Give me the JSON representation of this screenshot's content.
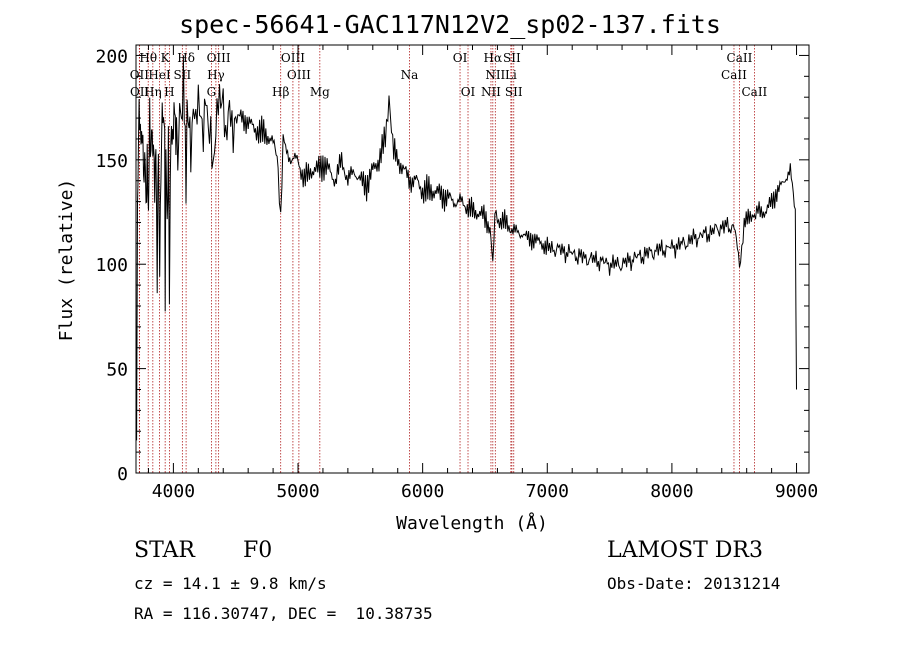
{
  "title": "spec-56641-GAC117N12V2_sp02-137.fits",
  "info": {
    "object_class": "STAR",
    "subclass": "F0",
    "survey": "LAMOST DR3",
    "redshift": "cz = 14.1 ± 9.8 km/s",
    "obs_date": "Obs-Date: 20131214",
    "coords": "RA = 116.30747, DEC =  10.38735"
  },
  "chart_data": {
    "type": "line",
    "title": "spec-56641-GAC117N12V2_sp02-137.fits",
    "xlabel": "Wavelength (Å)",
    "ylabel": "Flux (relative)",
    "xlim": [
      3700,
      9100
    ],
    "ylim": [
      0,
      205
    ],
    "x_ticks": [
      4000,
      5000,
      6000,
      7000,
      8000,
      9000
    ],
    "y_ticks": [
      0,
      50,
      100,
      150,
      200
    ],
    "line_color": "#000000",
    "marker_color": "#b22222",
    "series": [
      {
        "x": [
          3700,
          3705,
          3712,
          3720,
          3730,
          3740,
          3750,
          3760,
          3770,
          3780,
          3790,
          3800,
          3810,
          3820,
          3830,
          3840,
          3850,
          3860,
          3870,
          3880,
          3890,
          3900,
          3910,
          3920,
          3930,
          3934,
          3940,
          3950,
          3960,
          3968,
          3975,
          3985,
          3995,
          4005,
          4015,
          4025,
          4035,
          4050,
          4065,
          4080,
          4095,
          4101,
          4110,
          4125,
          4140,
          4160,
          4180,
          4200,
          4220,
          4240,
          4260,
          4280,
          4300,
          4320,
          4340,
          4360,
          4380,
          4400,
          4420,
          4450,
          4480,
          4500,
          4550,
          4600,
          4650,
          4700,
          4750,
          4800,
          4840,
          4861,
          4880,
          4900,
          4950,
          5000,
          5050,
          5100,
          5150,
          5200,
          5250,
          5300,
          5350,
          5400,
          5450,
          5500,
          5550,
          5600,
          5650,
          5700,
          5730,
          5760,
          5800,
          5850,
          5900,
          5950,
          6000,
          6050,
          6100,
          6150,
          6200,
          6250,
          6300,
          6350,
          6400,
          6450,
          6500,
          6540,
          6563,
          6580,
          6600,
          6650,
          6700,
          6750,
          6800,
          6850,
          6900,
          6950,
          7000,
          7100,
          7200,
          7300,
          7400,
          7500,
          7600,
          7700,
          7800,
          7900,
          8000,
          8100,
          8200,
          8300,
          8400,
          8500,
          8542,
          8580,
          8620,
          8662,
          8700,
          8750,
          8800,
          8850,
          8900,
          8950,
          8990,
          9000
        ],
        "y": [
          70,
          10,
          130,
          160,
          172,
          150,
          165,
          140,
          155,
          135,
          150,
          130,
          168,
          150,
          160,
          150,
          140,
          155,
          100,
          160,
          95,
          145,
          165,
          170,
          155,
          80,
          150,
          125,
          160,
          95,
          140,
          170,
          150,
          175,
          160,
          165,
          150,
          180,
          170,
          185,
          160,
          130,
          175,
          170,
          160,
          180,
          165,
          175,
          170,
          160,
          180,
          165,
          170,
          150,
          160,
          170,
          175,
          185,
          165,
          175,
          160,
          170,
          170,
          168,
          165,
          163,
          162,
          158,
          150,
          120,
          158,
          155,
          150,
          150,
          140,
          145,
          145,
          148,
          145,
          140,
          150,
          140,
          145,
          140,
          138,
          145,
          150,
          160,
          180,
          155,
          150,
          145,
          140,
          140,
          135,
          135,
          135,
          133,
          132,
          130,
          130,
          128,
          125,
          125,
          122,
          118,
          100,
          120,
          122,
          120,
          118,
          115,
          115,
          112,
          112,
          110,
          108,
          107,
          105,
          103,
          102,
          100,
          100,
          103,
          105,
          107,
          108,
          110,
          113,
          115,
          118,
          118,
          100,
          120,
          122,
          125,
          125,
          125,
          130,
          135,
          140,
          145,
          125,
          40
        ]
      }
    ],
    "lines": [
      {
        "label": "Hθ",
        "wavelength": 3798,
        "row": 0
      },
      {
        "label": "OII",
        "wavelength": 3727,
        "row": 1
      },
      {
        "label": "OII",
        "wavelength": 3729,
        "row": 2
      },
      {
        "label": "HeI",
        "wavelength": 3889,
        "row": 1
      },
      {
        "label": "Hη",
        "wavelength": 3835,
        "row": 2
      },
      {
        "label": "K",
        "wavelength": 3934,
        "row": 0
      },
      {
        "label": "H",
        "wavelength": 3968,
        "row": 2
      },
      {
        "label": "SII",
        "wavelength": 4072,
        "row": 1
      },
      {
        "label": "Hδ",
        "wavelength": 4102,
        "row": 0
      },
      {
        "label": "OIII",
        "wavelength": 4363,
        "row": 0
      },
      {
        "label": "Hγ",
        "wavelength": 4341,
        "row": 1
      },
      {
        "label": "G",
        "wavelength": 4305,
        "row": 2
      },
      {
        "label": "OIII",
        "wavelength": 4959,
        "row": 0
      },
      {
        "label": "OIII",
        "wavelength": 5007,
        "row": 1
      },
      {
        "label": "Hβ",
        "wavelength": 4861,
        "row": 2
      },
      {
        "label": "Mg",
        "wavelength": 5175,
        "row": 2
      },
      {
        "label": "Na",
        "wavelength": 5894,
        "row": 1
      },
      {
        "label": "OI",
        "wavelength": 6300,
        "row": 0
      },
      {
        "label": "OI",
        "wavelength": 6364,
        "row": 2
      },
      {
        "label": "Hα",
        "wavelength": 6563,
        "row": 0
      },
      {
        "label": "SII",
        "wavelength": 6716,
        "row": 0
      },
      {
        "label": "NII",
        "wavelength": 6583,
        "row": 1
      },
      {
        "label": "Li",
        "wavelength": 6708,
        "row": 1
      },
      {
        "label": "NII",
        "wavelength": 6548,
        "row": 2
      },
      {
        "label": "SII",
        "wavelength": 6731,
        "row": 2
      },
      {
        "label": "CaII",
        "wavelength": 8542,
        "row": 0
      },
      {
        "label": "CaII",
        "wavelength": 8498,
        "row": 1
      },
      {
        "label": "CaII",
        "wavelength": 8662,
        "row": 2
      }
    ]
  }
}
